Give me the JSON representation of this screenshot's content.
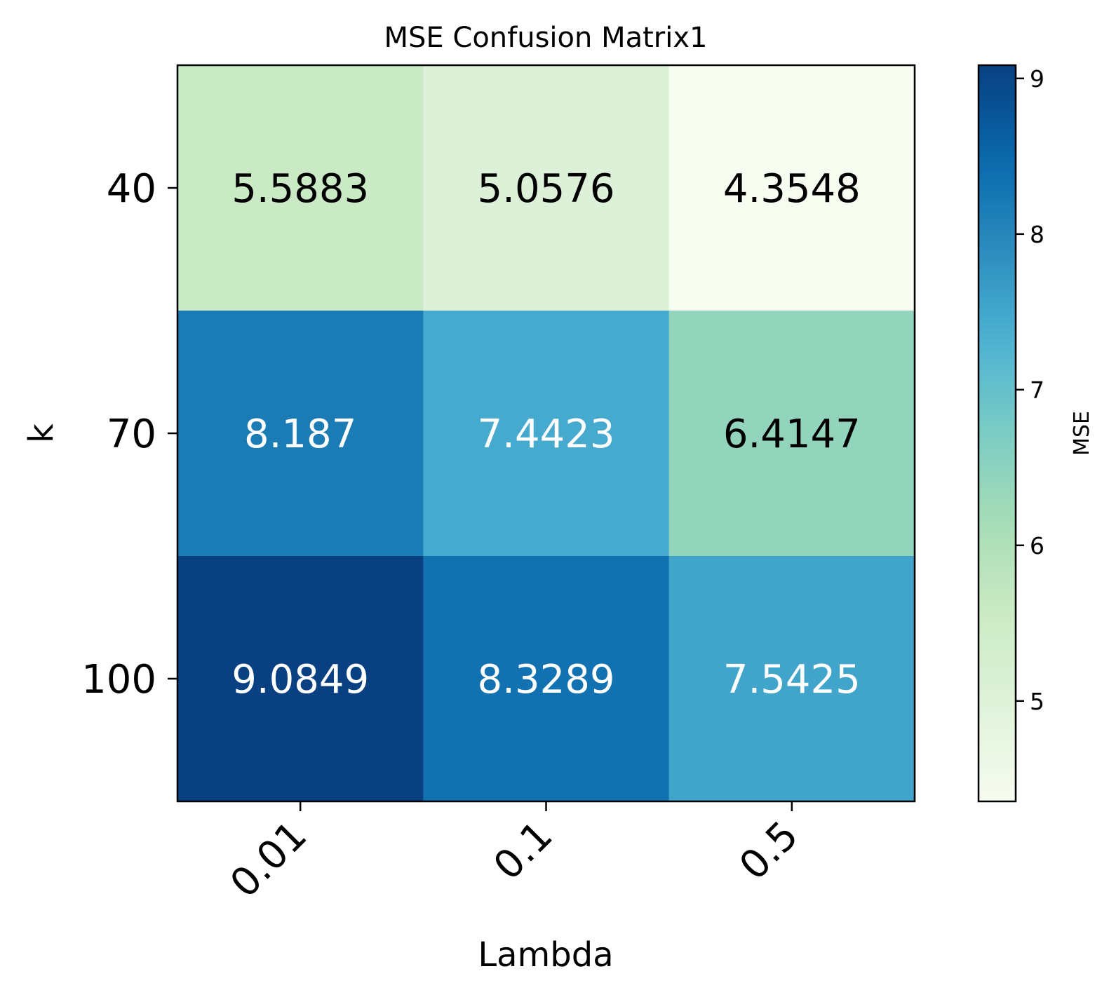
{
  "chart_data": {
    "type": "heatmap",
    "title": "MSE Confusion Matrix1",
    "xlabel": "Lambda",
    "ylabel": "k",
    "x_categories": [
      "0.01",
      "0.1",
      "0.5"
    ],
    "y_categories": [
      "40",
      "70",
      "100"
    ],
    "values": [
      [
        5.5883,
        5.0576,
        4.3548
      ],
      [
        8.187,
        7.4423,
        6.4147
      ],
      [
        9.0849,
        8.3289,
        7.5425
      ]
    ],
    "cell_labels": [
      [
        "5.5883",
        "5.0576",
        "4.3548"
      ],
      [
        "8.187",
        "7.4423",
        "6.4147"
      ],
      [
        "9.0849",
        "8.3289",
        "7.5425"
      ]
    ],
    "colormap": "GnBu",
    "vmin": 4.3548,
    "vmax": 9.0849,
    "colorbar": {
      "label": "MSE",
      "ticks": [
        5,
        6,
        7,
        8,
        9
      ],
      "tick_labels": [
        "5",
        "6",
        "7",
        "8",
        "9"
      ]
    },
    "x_tick_rotation_deg": 45,
    "grid": false,
    "legend": "none"
  }
}
